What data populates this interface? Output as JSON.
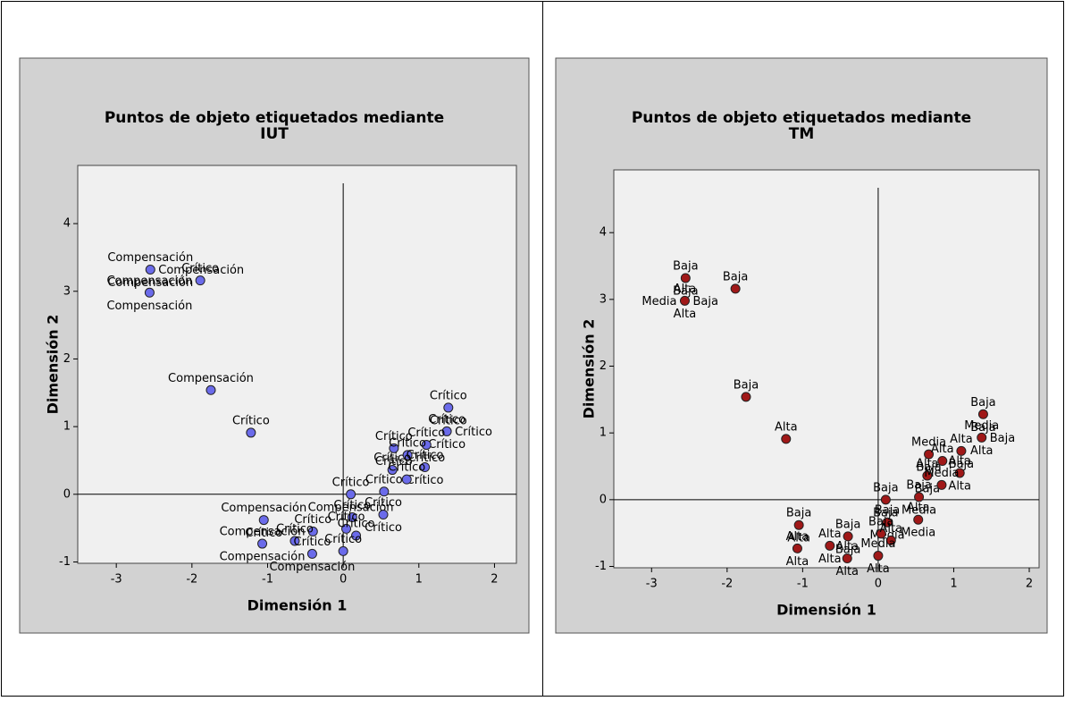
{
  "chart_data": [
    {
      "type": "scatter",
      "title": "Puntos de objeto etiquetados mediante",
      "subtitle": "IUT",
      "x_label": "Dimensión 1",
      "y_label": "Dimensión 2",
      "xlim": [
        -3.51,
        2.29
      ],
      "ylim": [
        -1.02,
        4.86
      ],
      "xticks": [
        -3,
        -2,
        -1,
        0,
        1,
        2
      ],
      "yticks": [
        -1,
        0,
        1,
        2,
        3,
        4
      ],
      "series": [
        {
          "color": "#6b6bea",
          "x": [
            -2.55,
            -1.89,
            -2.56,
            -1.75,
            -1.22,
            1.39,
            1.37,
            1.1,
            0.67,
            0.85,
            1.08,
            0.65,
            0.84,
            0.54,
            0.1,
            0.53,
            0.12,
            -1.05,
            0.04,
            -0.4,
            0.17,
            -0.64,
            -1.07,
            0.0,
            -0.41
          ],
          "values": [
            3.32,
            3.16,
            2.98,
            1.54,
            0.91,
            1.28,
            0.93,
            0.73,
            0.68,
            0.58,
            0.4,
            0.36,
            0.22,
            0.04,
            0.0,
            -0.3,
            -0.34,
            -0.38,
            -0.51,
            -0.55,
            -0.61,
            -0.69,
            -0.73,
            -0.84,
            -0.88
          ],
          "labels": [
            [
              "Compensación",
              "Compensación",
              "Compensación"
            ],
            [
              "Crítico"
            ],
            [
              "Compensación",
              "Compensación"
            ],
            [
              "Compensación"
            ],
            [
              "Crítico"
            ],
            [
              "Crítico",
              "Crítico"
            ],
            [
              "Crítico",
              "Crítico",
              "Crítico"
            ],
            [
              "Crítico",
              "Crítico"
            ],
            [
              "Crítico",
              "Crítico"
            ],
            [
              "Crítico"
            ],
            [
              "Crítico",
              "Crítico"
            ],
            [
              "Crítico"
            ],
            [
              "Crítico"
            ],
            [
              "Crítico"
            ],
            [
              "Crítico",
              "Compensación"
            ],
            [
              "Crítico",
              "Crítico"
            ],
            [
              "Crítico"
            ],
            [
              "Compensación",
              "Crítico"
            ],
            [
              "Crítico"
            ],
            [
              "Crítico"
            ],
            [
              "Crítico"
            ],
            [
              "Crítico"
            ],
            [
              "Compensación",
              "Compensación"
            ],
            [
              "Crítico"
            ],
            [
              "Crítico",
              "Compensación"
            ]
          ]
        }
      ]
    },
    {
      "type": "scatter",
      "title": "Puntos de objeto etiquetados mediante",
      "subtitle": "TM",
      "x_label": "Dimensión 1",
      "y_label": "Dimensión 2",
      "xlim": [
        -3.5,
        2.13
      ],
      "ylim": [
        -1.02,
        4.94
      ],
      "xticks": [
        -3,
        -2,
        -1,
        0,
        1,
        2
      ],
      "yticks": [
        -1,
        0,
        1,
        2,
        3,
        4
      ],
      "series": [
        {
          "color": "#a01818",
          "x": [
            -2.55,
            -1.89,
            -2.56,
            -1.75,
            -1.22,
            1.39,
            1.37,
            1.1,
            0.67,
            0.85,
            1.08,
            0.65,
            0.84,
            0.54,
            0.1,
            0.53,
            0.12,
            -1.05,
            0.04,
            -0.4,
            0.17,
            -0.64,
            -1.07,
            0.0,
            -0.41
          ],
          "values": [
            3.32,
            3.16,
            2.98,
            1.54,
            0.91,
            1.28,
            0.93,
            0.73,
            0.68,
            0.58,
            0.4,
            0.36,
            0.22,
            0.04,
            0.0,
            -0.3,
            -0.34,
            -0.38,
            -0.51,
            -0.55,
            -0.61,
            -0.69,
            -0.73,
            -0.84,
            -0.88
          ],
          "labels": [
            [
              "Baja",
              "Baja"
            ],
            [
              "Baja"
            ],
            [
              "Alta",
              "Alta",
              "Baja",
              "Media"
            ],
            [
              "Baja"
            ],
            [
              "Alta"
            ],
            [
              "Baja",
              "Baja"
            ],
            [
              "Media",
              "Alta",
              "Baja"
            ],
            [
              "Alta",
              "Baja"
            ],
            [
              "Media",
              "Baja"
            ],
            [
              "Alta"
            ],
            [
              "Alta",
              "Alta"
            ],
            [
              "Alta",
              "Baja"
            ],
            [
              "Media"
            ],
            [
              "Baja",
              "Media"
            ],
            [
              "Baja",
              "Baja"
            ],
            [
              "Alta",
              "Media"
            ],
            [
              "Baja",
              "Media"
            ],
            [
              "Baja",
              "Alta"
            ],
            [
              "Baja"
            ],
            [
              "Baja",
              "Baja"
            ],
            [
              "Alta"
            ],
            [
              "Alta",
              "Alta"
            ],
            [
              "Alta",
              "Alta"
            ],
            [
              "Media",
              "Alta"
            ],
            [
              "Alta",
              "Alta"
            ]
          ]
        }
      ]
    }
  ]
}
